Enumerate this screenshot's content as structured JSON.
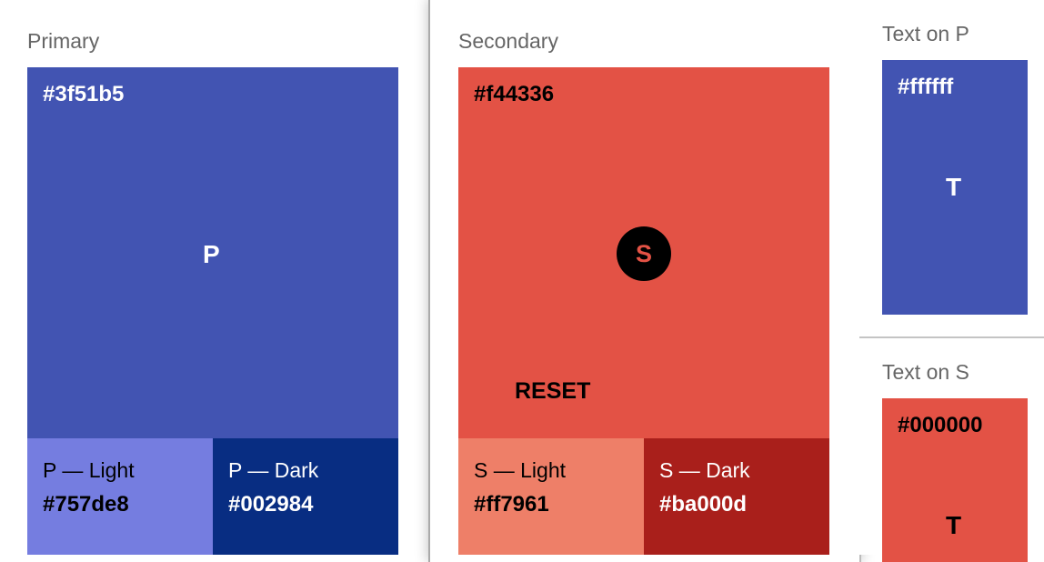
{
  "primary": {
    "title": "Primary",
    "main": {
      "hex": "#3f51b5",
      "letter": "P",
      "color": "#4254b2"
    },
    "light": {
      "label": "P — Light",
      "hex": "#757de8",
      "color": "#757de0"
    },
    "dark": {
      "label": "P — Dark",
      "hex": "#002984",
      "color": "#082d82"
    }
  },
  "secondary": {
    "title": "Secondary",
    "main": {
      "hex": "#f44336",
      "letter": "S",
      "color": "#e35245"
    },
    "reset_label": "RESET",
    "light": {
      "label": "S — Light",
      "hex": "#ff7961",
      "color": "#ee7f68"
    },
    "dark": {
      "label": "S — Dark",
      "hex": "#ba000d",
      "color": "#a91f1b"
    }
  },
  "text_on_p": {
    "title": "Text on P",
    "hex": "#ffffff",
    "letter": "T"
  },
  "text_on_s": {
    "title": "Text on S",
    "hex": "#000000",
    "letter": "T"
  }
}
